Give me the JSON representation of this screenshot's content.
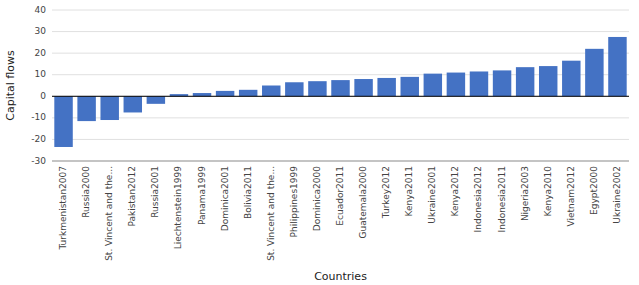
{
  "chart_data": {
    "type": "bar",
    "categories": [
      "Turkmenistan2007",
      "Russia2000",
      "St. Vincent and the...",
      "Pakistan2012",
      "Russia2001",
      "Liechtenstein1999",
      "Panama1999",
      "Dominica2001",
      "Bolivia2011",
      "St. Vincent and the...",
      "Philippines1999",
      "Dominica2000",
      "Ecuador2011",
      "Guatemala2000",
      "Turkey2012",
      "Kenya2011",
      "Ukraine2001",
      "Kenya2012",
      "Indonesia2012",
      "Indonesia2011",
      "Nigeria2003",
      "Kenya2010",
      "Vietnam2012",
      "Egypt2000",
      "Ukraine2002"
    ],
    "values": [
      -23.5,
      -11.5,
      -11.0,
      -7.5,
      -3.5,
      1.0,
      1.5,
      2.5,
      3.0,
      5.0,
      6.5,
      7.0,
      7.5,
      8.0,
      8.5,
      9.0,
      10.5,
      11.0,
      11.5,
      12.0,
      13.5,
      14.0,
      16.5,
      22.0,
      27.5
    ],
    "color": "#4472C4",
    "xlabel": "Countries",
    "ylabel": "Capital flows",
    "ylim": [
      -30,
      40
    ],
    "yticks": [
      -30,
      -20,
      -10,
      0,
      10,
      20,
      30,
      40
    ],
    "grid": true
  }
}
